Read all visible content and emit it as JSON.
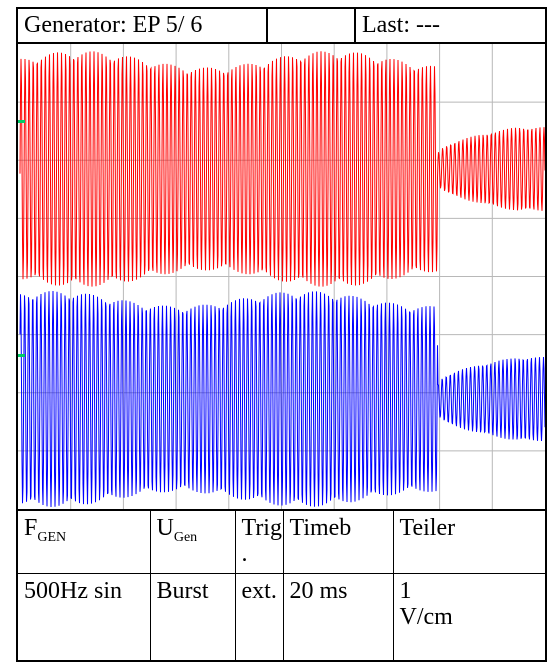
{
  "header": {
    "generator": "Generator: EP 5/ 6",
    "empty": "",
    "last": "Last: ---"
  },
  "chart_data": {
    "type": "line",
    "grid": true,
    "series": [
      {
        "color": "#ff0000",
        "description": "upper trace: high amplitude burst then lower amplitude oscillation"
      },
      {
        "color": "#0000ff",
        "description": "lower trace: high amplitude burst then lower amplitude oscillation"
      }
    ],
    "markers": [
      {
        "color": "#00cc66"
      },
      {
        "color": "#00cc66"
      }
    ]
  },
  "table": {
    "headers": {
      "fgen_main": "F",
      "fgen_sub": "GEN",
      "ugen_main": "U",
      "ugen_sub": "Gen",
      "trig": "Trig\n.",
      "timeb": "Timeb",
      "teiler": "Teiler"
    },
    "values": {
      "fgen": "500Hz sin",
      "ugen": "Burst",
      "trig": "ext.",
      "timeb": "20 ms",
      "teiler": "1\nV/cm"
    }
  }
}
